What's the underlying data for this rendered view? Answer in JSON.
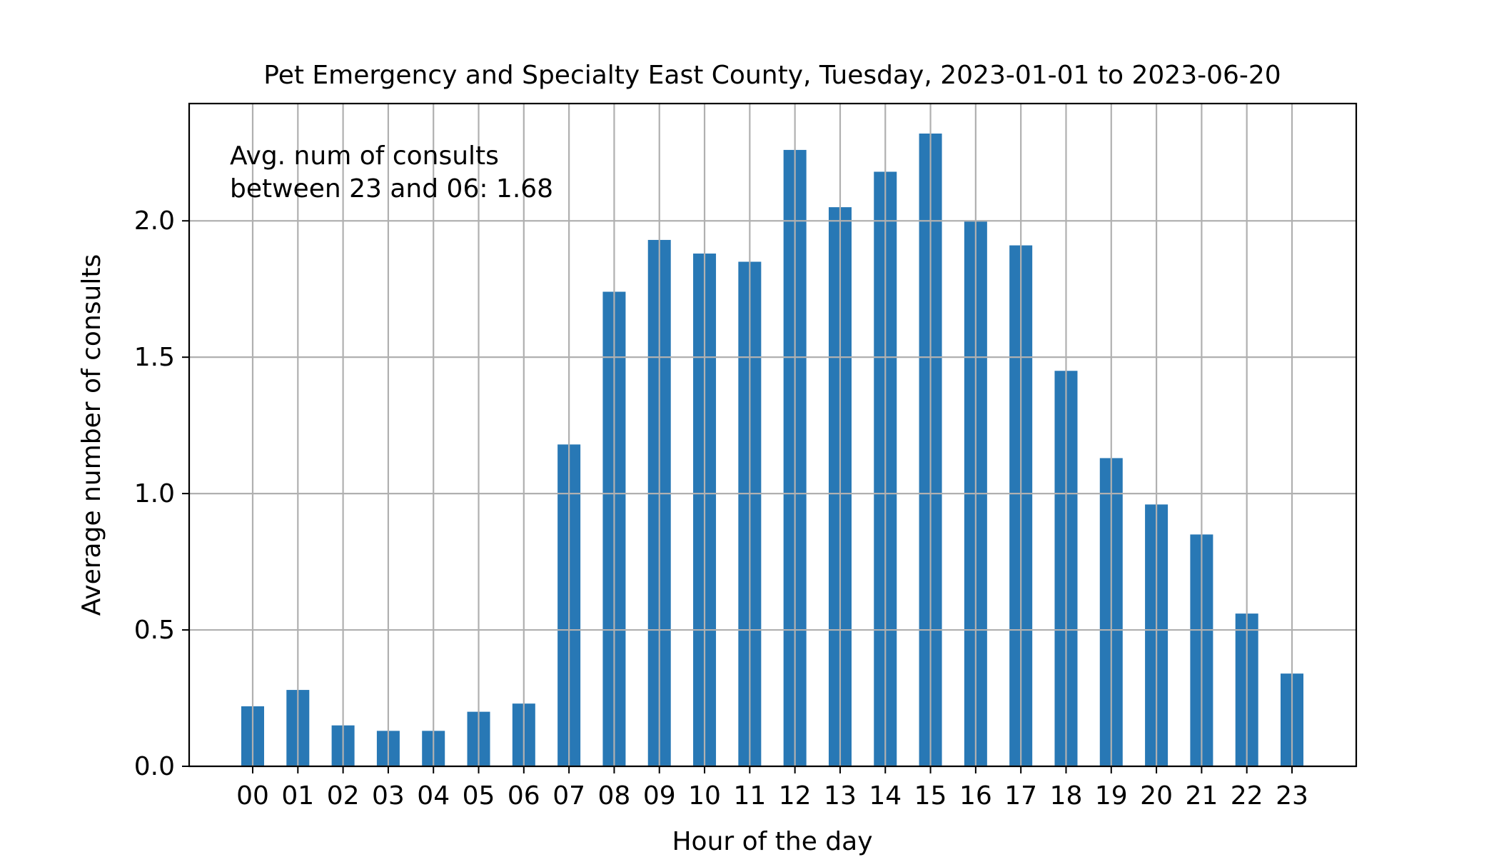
{
  "chart_data": {
    "type": "bar",
    "title": "Pet Emergency and Specialty East County, Tuesday, 2023-01-01 to 2023-06-20",
    "xlabel": "Hour of the day",
    "ylabel": "Average number of consults",
    "categories": [
      "00",
      "01",
      "02",
      "03",
      "04",
      "05",
      "06",
      "07",
      "08",
      "09",
      "10",
      "11",
      "12",
      "13",
      "14",
      "15",
      "16",
      "17",
      "18",
      "19",
      "20",
      "21",
      "22",
      "23"
    ],
    "values": [
      0.22,
      0.28,
      0.15,
      0.13,
      0.13,
      0.2,
      0.23,
      1.18,
      1.74,
      1.93,
      1.88,
      1.85,
      2.26,
      2.05,
      2.18,
      2.32,
      2.0,
      1.91,
      1.45,
      1.13,
      0.96,
      0.85,
      0.56,
      0.34
    ],
    "ylim": [
      0,
      2.43
    ],
    "yticks": [
      0.0,
      0.5,
      1.0,
      1.5,
      2.0
    ],
    "ytick_labels": [
      "0.0",
      "0.5",
      "1.0",
      "1.5",
      "2.0"
    ],
    "grid": true,
    "annotation": [
      "Avg. num of consults",
      "between 23 and 06: 1.68"
    ],
    "colors": {
      "bar": "#2878b5",
      "grid": "#b0b0b0",
      "axis": "#000000"
    }
  }
}
